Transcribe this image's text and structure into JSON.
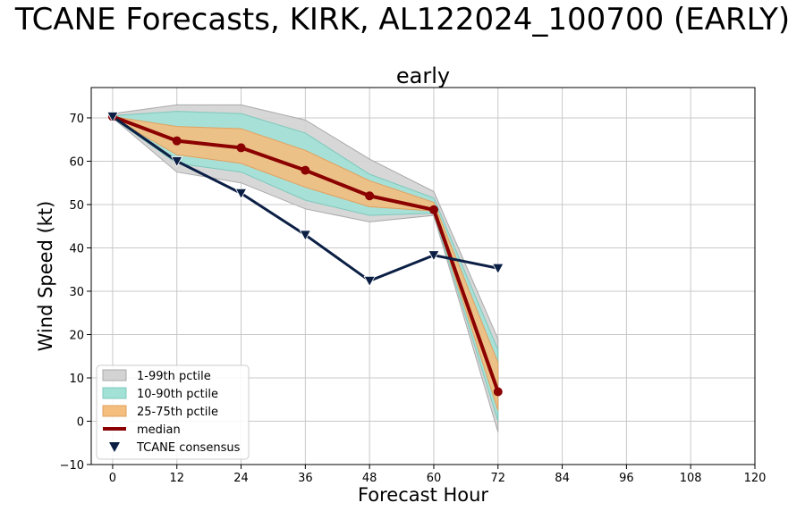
{
  "figure": {
    "suptitle": "TCANE Forecasts, KIRK, AL122024_100700 (EARLY)"
  },
  "chart_data": {
    "type": "line",
    "title": "early",
    "xlabel": "Forecast Hour",
    "ylabel": "Wind Speed (kt)",
    "xlim": [
      -4,
      120
    ],
    "ylim": [
      -10,
      77
    ],
    "xticks": [
      0,
      12,
      24,
      36,
      48,
      60,
      72,
      84,
      96,
      108,
      120
    ],
    "yticks": [
      -10,
      0,
      10,
      20,
      30,
      40,
      50,
      60,
      70
    ],
    "grid": true,
    "legend_position": "lower-left",
    "x": [
      0,
      12,
      24,
      36,
      48,
      60,
      72
    ],
    "bands": [
      {
        "name": "1-99th pctile",
        "color": "#d3d3d3",
        "edge": "#a9a9a9",
        "lower": [
          70,
          57.5,
          55,
          49,
          46,
          47.5,
          -2.5
        ],
        "upper": [
          71,
          73,
          73,
          69.5,
          60.5,
          53,
          19
        ]
      },
      {
        "name": "10-90th pctile",
        "color": "#a2e1d6",
        "edge": "#7fc8bc",
        "lower": [
          70,
          59.5,
          57.5,
          51,
          47.5,
          48,
          0
        ],
        "upper": [
          70.5,
          71.5,
          71,
          66.5,
          57,
          51.5,
          16.5
        ]
      },
      {
        "name": "25-75th pctile",
        "color": "#f4be7e",
        "edge": "#e0a060",
        "lower": [
          70,
          61.5,
          59.5,
          54,
          49.5,
          48.5,
          2.5
        ],
        "upper": [
          70.3,
          68,
          67.5,
          62.5,
          55.5,
          50.5,
          13.5
        ]
      }
    ],
    "series": [
      {
        "name": "median",
        "color": "#8b0000",
        "marker": "circle",
        "values": [
          70.3,
          64.7,
          63.1,
          57.9,
          52.0,
          48.8,
          6.8
        ]
      },
      {
        "name": "TCANE consensus",
        "color": "#0b1f45",
        "marker": "triangle-down",
        "values": [
          70.3,
          60.0,
          52.6,
          43.0,
          32.4,
          38.3,
          35.3
        ]
      }
    ]
  }
}
